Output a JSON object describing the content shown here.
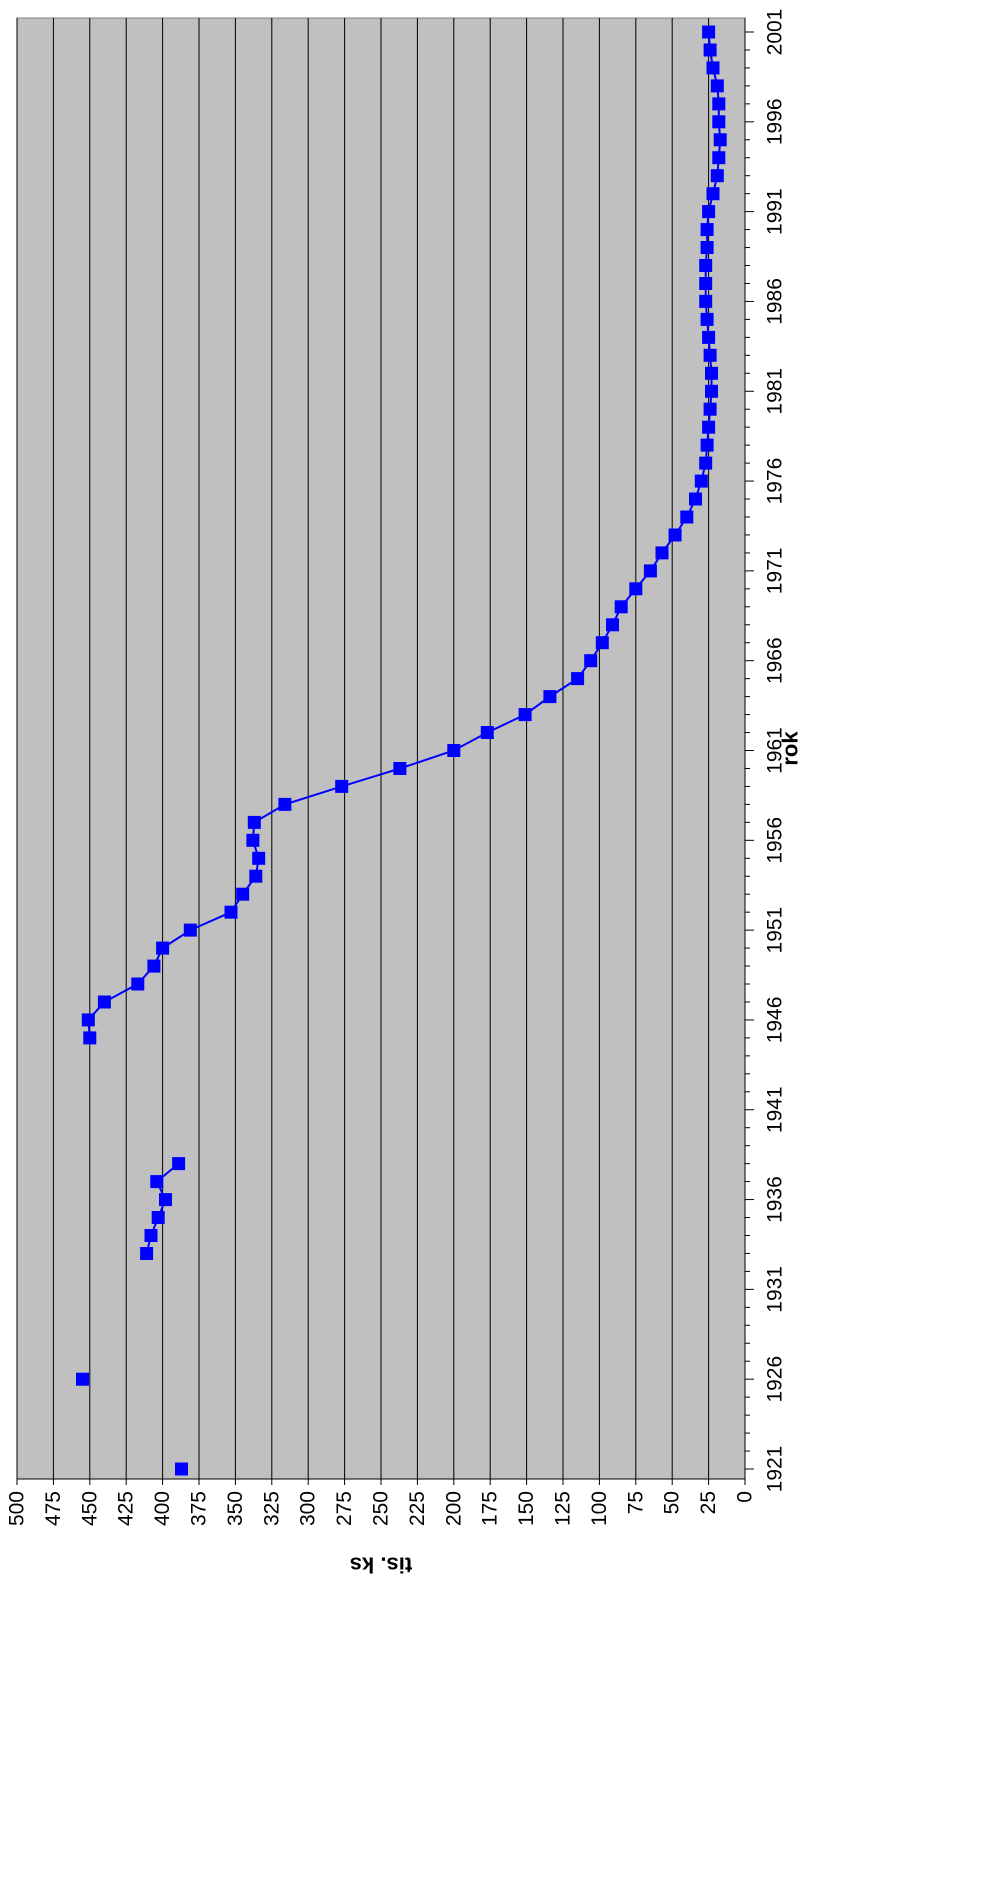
{
  "chart_data": {
    "type": "line",
    "xlabel": "rok",
    "ylabel": "tis. ks",
    "xlim": [
      1921,
      2001
    ],
    "ylim": [
      0,
      500
    ],
    "x_ticks": [
      1921,
      1926,
      1931,
      1936,
      1941,
      1946,
      1951,
      1956,
      1961,
      1966,
      1971,
      1976,
      1981,
      1986,
      1991,
      1996,
      2001
    ],
    "y_ticks": [
      0,
      25,
      50,
      75,
      100,
      125,
      150,
      175,
      200,
      225,
      250,
      275,
      300,
      325,
      350,
      375,
      400,
      425,
      450,
      475,
      500
    ],
    "grid": "horizontal",
    "legend": "none",
    "colors": {
      "plot_bg": "#c0c0c0",
      "series": "#0000ff",
      "line": "#0000ff",
      "grid": "#000000"
    },
    "series": [
      {
        "x": [
          1921,
          1926,
          1933,
          1934,
          1935,
          1936,
          1937,
          1938,
          1945,
          1946,
          1947,
          1948,
          1949,
          1950,
          1951,
          1952,
          1953,
          1954,
          1955,
          1956,
          1957,
          1958,
          1959,
          1960,
          1961,
          1962,
          1963,
          1964,
          1965,
          1966,
          1967,
          1968,
          1969,
          1970,
          1971,
          1972,
          1973,
          1974,
          1975,
          1976,
          1977,
          1978,
          1979,
          1980,
          1981,
          1982,
          1983,
          1984,
          1985,
          1986,
          1987,
          1988,
          1989,
          1990,
          1991,
          1992,
          1993,
          1994,
          1995,
          1996,
          1997,
          1998,
          1999,
          2000,
          2001
        ],
        "y": [
          387,
          455,
          411,
          408,
          403,
          398,
          404,
          389,
          450,
          451,
          440,
          417,
          406,
          400,
          381,
          353,
          345,
          336,
          334,
          338,
          337,
          316,
          277,
          237,
          200,
          177,
          151,
          134,
          115,
          106,
          98,
          91,
          85,
          75,
          65,
          57,
          48,
          40,
          34,
          30,
          27,
          26,
          25,
          24,
          23,
          23,
          24,
          25,
          26,
          27,
          27,
          27,
          26,
          26,
          25,
          22,
          19,
          18,
          17,
          18,
          18,
          19,
          22,
          24,
          25
        ],
        "segments": [
          [
            0,
            0
          ],
          [
            1,
            1
          ],
          [
            2,
            7
          ],
          [
            8,
            64
          ]
        ]
      }
    ]
  }
}
